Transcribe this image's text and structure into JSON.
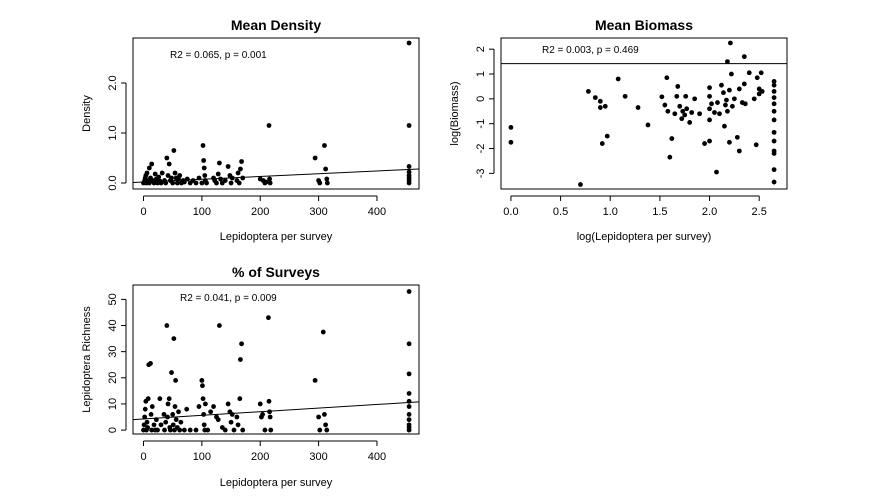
{
  "chart_data": [
    {
      "type": "scatter",
      "title": "Mean Density",
      "xlabel": "Lepidoptera per survey",
      "ylabel": "Density",
      "annotation": "R2 = 0.065, p = 0.001",
      "xlim": [
        -18,
        472
      ],
      "ylim": [
        -0.12,
        2.9
      ],
      "xticks": [
        0,
        100,
        200,
        300,
        400
      ],
      "xtick_labels": [
        "0",
        "100",
        "200",
        "300",
        "400"
      ],
      "yticks": [
        0,
        1,
        2
      ],
      "ytick_labels": [
        "0.0",
        "1.0",
        "2.0"
      ],
      "fit": {
        "x": [
          -18,
          472
        ],
        "y": [
          0.01,
          0.28
        ]
      },
      "points": [
        [
          0,
          0.0
        ],
        [
          2,
          0.05
        ],
        [
          3,
          0.1
        ],
        [
          4,
          0.15
        ],
        [
          5,
          0.0
        ],
        [
          6,
          0.2
        ],
        [
          8,
          0.05
        ],
        [
          10,
          0.3
        ],
        [
          10,
          0.0
        ],
        [
          12,
          0.1
        ],
        [
          14,
          0.38
        ],
        [
          16,
          0.05
        ],
        [
          18,
          0.0
        ],
        [
          20,
          0.18
        ],
        [
          22,
          0.08
        ],
        [
          24,
          0.0
        ],
        [
          26,
          0.12
        ],
        [
          28,
          0.04
        ],
        [
          30,
          0.0
        ],
        [
          32,
          0.2
        ],
        [
          36,
          0.05
        ],
        [
          38,
          0.0
        ],
        [
          40,
          0.5
        ],
        [
          42,
          0.15
        ],
        [
          44,
          0.38
        ],
        [
          46,
          0.05
        ],
        [
          48,
          0.1
        ],
        [
          50,
          0.0
        ],
        [
          52,
          0.65
        ],
        [
          54,
          0.2
        ],
        [
          56,
          0.1
        ],
        [
          58,
          0.0
        ],
        [
          60,
          0.08
        ],
        [
          62,
          0.15
        ],
        [
          65,
          0.0
        ],
        [
          68,
          0.05
        ],
        [
          70,
          0.02
        ],
        [
          75,
          0.08
        ],
        [
          80,
          0.0
        ],
        [
          85,
          0.05
        ],
        [
          90,
          0.0
        ],
        [
          95,
          0.1
        ],
        [
          100,
          0.0
        ],
        [
          102,
          0.75
        ],
        [
          103,
          0.45
        ],
        [
          104,
          0.3
        ],
        [
          105,
          0.15
        ],
        [
          106,
          0.05
        ],
        [
          108,
          0.0
        ],
        [
          120,
          0.1
        ],
        [
          122,
          0.05
        ],
        [
          125,
          0.0
        ],
        [
          128,
          0.18
        ],
        [
          130,
          0.4
        ],
        [
          132,
          0.08
        ],
        [
          135,
          0.0
        ],
        [
          140,
          0.05
        ],
        [
          145,
          0.33
        ],
        [
          148,
          0.15
        ],
        [
          150,
          0.0
        ],
        [
          152,
          0.1
        ],
        [
          160,
          0.05
        ],
        [
          162,
          0.2
        ],
        [
          164,
          0.0
        ],
        [
          166,
          0.28
        ],
        [
          168,
          0.43
        ],
        [
          170,
          0.1
        ],
        [
          200,
          0.08
        ],
        [
          205,
          0.05
        ],
        [
          208,
          0.0
        ],
        [
          210,
          0.02
        ],
        [
          215,
          1.15
        ],
        [
          216,
          0.08
        ],
        [
          217,
          0.0
        ],
        [
          294,
          0.5
        ],
        [
          300,
          0.05
        ],
        [
          302,
          0.0
        ],
        [
          310,
          0.75
        ],
        [
          312,
          0.28
        ],
        [
          314,
          0.08
        ],
        [
          315,
          0.0
        ],
        [
          455,
          2.8
        ],
        [
          455,
          1.15
        ],
        [
          455,
          0.33
        ],
        [
          455,
          0.22
        ],
        [
          455,
          0.15
        ],
        [
          455,
          0.1
        ],
        [
          455,
          0.05
        ],
        [
          455,
          0.0
        ]
      ]
    },
    {
      "type": "scatter",
      "title": "Mean Biomass",
      "xlabel": "log(Lepidoptera per survey)",
      "ylabel": "log(Biomass)",
      "annotation": "R2 = 0.003, p = 0.469",
      "xlim": [
        -0.1,
        2.78
      ],
      "ylim": [
        -3.63,
        2.45
      ],
      "xticks": [
        0,
        0.5,
        1,
        1.5,
        2,
        2.5
      ],
      "xtick_labels": [
        "0.0",
        "0.5",
        "1.0",
        "1.5",
        "2.0",
        "2.5"
      ],
      "yticks": [
        -3,
        -2,
        -1,
        0,
        1,
        2
      ],
      "ytick_labels": [
        "-3",
        "-2",
        "-1",
        "0",
        "1",
        "2"
      ],
      "fit": {
        "x": [
          -0.1,
          2.78
        ],
        "y": [
          1.42,
          1.42
        ]
      },
      "points": [
        [
          0.0,
          -1.15
        ],
        [
          0.0,
          -1.75
        ],
        [
          0.7,
          -3.45
        ],
        [
          0.78,
          0.3
        ],
        [
          0.85,
          0.05
        ],
        [
          0.9,
          -0.1
        ],
        [
          0.9,
          -0.35
        ],
        [
          0.92,
          -1.8
        ],
        [
          0.95,
          -0.3
        ],
        [
          0.97,
          -1.5
        ],
        [
          1.08,
          0.8
        ],
        [
          1.15,
          0.1
        ],
        [
          1.28,
          -0.35
        ],
        [
          1.38,
          -1.05
        ],
        [
          1.52,
          0.08
        ],
        [
          1.55,
          -0.25
        ],
        [
          1.57,
          0.85
        ],
        [
          1.58,
          -0.5
        ],
        [
          1.6,
          -2.35
        ],
        [
          1.62,
          -1.6
        ],
        [
          1.65,
          -0.6
        ],
        [
          1.67,
          0.1
        ],
        [
          1.68,
          0.5
        ],
        [
          1.7,
          -0.3
        ],
        [
          1.72,
          -0.8
        ],
        [
          1.73,
          -0.5
        ],
        [
          1.75,
          -0.65
        ],
        [
          1.76,
          0.1
        ],
        [
          1.77,
          -0.4
        ],
        [
          1.8,
          -0.95
        ],
        [
          1.82,
          -0.55
        ],
        [
          1.85,
          0.0
        ],
        [
          1.9,
          -0.6
        ],
        [
          1.95,
          -1.8
        ],
        [
          2.0,
          0.45
        ],
        [
          2.0,
          0.1
        ],
        [
          2.0,
          -0.4
        ],
        [
          2.0,
          -0.85
        ],
        [
          2.0,
          -1.7
        ],
        [
          2.02,
          -0.2
        ],
        [
          2.05,
          -0.55
        ],
        [
          2.07,
          -2.95
        ],
        [
          2.08,
          -0.15
        ],
        [
          2.1,
          -0.6
        ],
        [
          2.12,
          0.55
        ],
        [
          2.14,
          0.25
        ],
        [
          2.15,
          -1.1
        ],
        [
          2.16,
          -0.25
        ],
        [
          2.17,
          -0.05
        ],
        [
          2.18,
          1.5
        ],
        [
          2.18,
          -0.5
        ],
        [
          2.2,
          0.35
        ],
        [
          2.2,
          -1.75
        ],
        [
          2.21,
          2.25
        ],
        [
          2.22,
          1.0
        ],
        [
          2.23,
          -0.3
        ],
        [
          2.25,
          0.0
        ],
        [
          2.28,
          -1.55
        ],
        [
          2.3,
          -2.1
        ],
        [
          2.3,
          0.4
        ],
        [
          2.33,
          -0.15
        ],
        [
          2.35,
          1.7
        ],
        [
          2.35,
          0.6
        ],
        [
          2.36,
          -0.2
        ],
        [
          2.4,
          1.05
        ],
        [
          2.45,
          0.0
        ],
        [
          2.47,
          -1.85
        ],
        [
          2.48,
          0.85
        ],
        [
          2.5,
          0.4
        ],
        [
          2.5,
          0.2
        ],
        [
          2.52,
          1.05
        ],
        [
          2.53,
          0.3
        ],
        [
          2.65,
          0.7
        ],
        [
          2.65,
          0.55
        ],
        [
          2.65,
          0.3
        ],
        [
          2.65,
          0.05
        ],
        [
          2.65,
          -0.2
        ],
        [
          2.65,
          -0.5
        ],
        [
          2.65,
          -0.85
        ],
        [
          2.65,
          -1.35
        ],
        [
          2.65,
          -1.7
        ],
        [
          2.65,
          -2.1
        ],
        [
          2.65,
          -2.2
        ],
        [
          2.65,
          -2.85
        ],
        [
          2.65,
          -3.35
        ]
      ]
    },
    {
      "type": "scatter",
      "title": "% of Surveys",
      "xlabel": "Lepidoptera per survey",
      "ylabel": "Lepidoptera Richness",
      "annotation": "R2 = 0.041, p = 0.009",
      "xlim": [
        -18,
        472
      ],
      "ylim": [
        -1.5,
        55.5
      ],
      "xticks": [
        0,
        100,
        200,
        300,
        400
      ],
      "xtick_labels": [
        "0",
        "100",
        "200",
        "300",
        "400"
      ],
      "yticks": [
        0,
        10,
        20,
        30,
        40,
        50
      ],
      "ytick_labels": [
        "0",
        "10",
        "20",
        "30",
        "40",
        "50"
      ],
      "fit": {
        "x": [
          -18,
          472
        ],
        "y": [
          4.0,
          10.8
        ]
      },
      "points": [
        [
          0,
          0
        ],
        [
          1,
          2
        ],
        [
          2,
          5
        ],
        [
          3,
          8
        ],
        [
          4,
          11
        ],
        [
          5,
          0
        ],
        [
          6,
          3
        ],
        [
          7,
          1
        ],
        [
          8,
          12
        ],
        [
          9,
          25
        ],
        [
          12,
          25.5
        ],
        [
          13,
          6
        ],
        [
          14,
          0
        ],
        [
          15,
          9
        ],
        [
          18,
          2
        ],
        [
          20,
          0
        ],
        [
          22,
          4
        ],
        [
          24,
          0
        ],
        [
          28,
          12
        ],
        [
          30,
          2
        ],
        [
          35,
          6
        ],
        [
          36,
          0
        ],
        [
          38,
          3
        ],
        [
          40,
          40
        ],
        [
          41,
          5
        ],
        [
          42,
          10
        ],
        [
          44,
          12
        ],
        [
          45,
          1
        ],
        [
          46,
          0
        ],
        [
          48,
          22
        ],
        [
          50,
          6
        ],
        [
          51,
          2
        ],
        [
          52,
          35
        ],
        [
          53,
          0
        ],
        [
          54,
          9
        ],
        [
          55,
          19
        ],
        [
          56,
          4
        ],
        [
          58,
          1
        ],
        [
          60,
          7
        ],
        [
          62,
          0
        ],
        [
          64,
          3
        ],
        [
          70,
          0
        ],
        [
          74,
          8
        ],
        [
          80,
          0
        ],
        [
          90,
          0
        ],
        [
          95,
          9
        ],
        [
          100,
          19
        ],
        [
          101,
          17
        ],
        [
          102,
          12
        ],
        [
          103,
          6
        ],
        [
          104,
          2
        ],
        [
          105,
          0
        ],
        [
          106,
          10
        ],
        [
          110,
          0
        ],
        [
          115,
          7
        ],
        [
          120,
          9
        ],
        [
          125,
          5
        ],
        [
          128,
          4
        ],
        [
          130,
          40
        ],
        [
          135,
          1
        ],
        [
          140,
          0
        ],
        [
          145,
          10
        ],
        [
          148,
          7
        ],
        [
          150,
          3
        ],
        [
          152,
          6
        ],
        [
          155,
          0
        ],
        [
          160,
          5
        ],
        [
          162,
          2
        ],
        [
          165,
          12
        ],
        [
          166,
          27
        ],
        [
          168,
          33
        ],
        [
          170,
          0
        ],
        [
          200,
          10
        ],
        [
          202,
          5
        ],
        [
          204,
          6
        ],
        [
          208,
          0
        ],
        [
          214,
          43
        ],
        [
          215,
          11
        ],
        [
          216,
          7
        ],
        [
          217,
          5
        ],
        [
          218,
          0
        ],
        [
          294,
          19
        ],
        [
          300,
          5
        ],
        [
          302,
          0
        ],
        [
          308,
          37.5
        ],
        [
          310,
          6
        ],
        [
          312,
          2
        ],
        [
          314,
          0
        ],
        [
          455,
          53
        ],
        [
          455,
          33
        ],
        [
          455,
          21.5
        ],
        [
          455,
          14
        ],
        [
          455,
          11
        ],
        [
          455,
          9
        ],
        [
          455,
          6
        ],
        [
          455,
          4
        ],
        [
          455,
          2
        ],
        [
          455,
          1
        ],
        [
          455,
          0
        ]
      ]
    }
  ]
}
